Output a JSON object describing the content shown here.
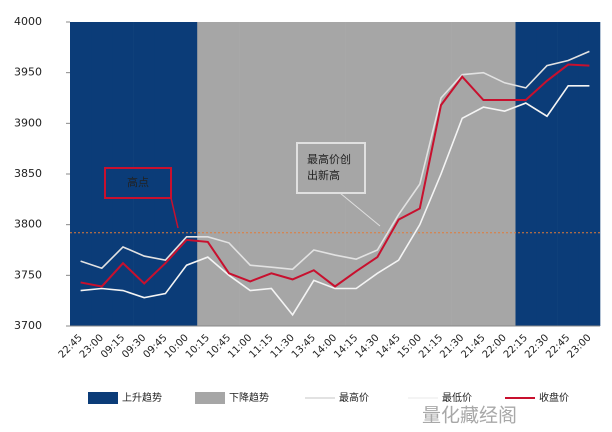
{
  "chart_data": {
    "type": "combo",
    "categories": [
      "22:45",
      "23:00",
      "09:15",
      "09:30",
      "09:45",
      "10:00",
      "10:15",
      "10:45",
      "11:00",
      "11:15",
      "11:30",
      "13:45",
      "14:00",
      "14:15",
      "14:30",
      "14:45",
      "15:00",
      "21:15",
      "21:30",
      "21:45",
      "22:00",
      "22:15",
      "22:30",
      "22:45",
      "23:00"
    ],
    "ylim": [
      3700,
      4000
    ],
    "yticks": [
      3700,
      3750,
      3800,
      3850,
      3900,
      3950,
      4000
    ],
    "series": [
      {
        "name": "上升趋势",
        "type": "bar",
        "color": "#0b3c78",
        "values": [
          4000,
          4000,
          4000,
          4000,
          4000,
          4000,
          null,
          null,
          null,
          null,
          null,
          null,
          null,
          null,
          null,
          null,
          null,
          null,
          null,
          null,
          null,
          4000,
          4000,
          4000,
          4000
        ]
      },
      {
        "name": "下降趋势",
        "type": "bar",
        "color": "#a6a6a6",
        "values": [
          null,
          null,
          null,
          null,
          null,
          null,
          4000,
          4000,
          4000,
          4000,
          4000,
          4000,
          4000,
          4000,
          4000,
          4000,
          4000,
          4000,
          4000,
          4000,
          4000,
          null,
          null,
          null,
          null
        ]
      },
      {
        "name": "最高价",
        "type": "line",
        "color": "#e2e2e2",
        "values": [
          3764,
          3757,
          3778,
          3769,
          3765,
          3788,
          3788,
          3782,
          3760,
          3758,
          3756,
          3775,
          3770,
          3766,
          3775,
          3810,
          3840,
          3925,
          3948,
          3950,
          3940,
          3935,
          3957,
          3962,
          3971
        ]
      },
      {
        "name": "最低价",
        "type": "line",
        "color": "#f4f4f4",
        "values": [
          3735,
          3737,
          3735,
          3728,
          3732,
          3760,
          3768,
          3750,
          3735,
          3737,
          3711,
          3745,
          3737,
          3737,
          3752,
          3765,
          3800,
          3850,
          3905,
          3916,
          3912,
          3920,
          3907,
          3937,
          3937
        ]
      },
      {
        "name": "收盘价",
        "type": "line",
        "color": "#c8102e",
        "values": [
          3743,
          3739,
          3762,
          3742,
          3762,
          3785,
          3783,
          3752,
          3744,
          3752,
          3746,
          3755,
          3739,
          3754,
          3768,
          3805,
          3816,
          3918,
          3946,
          3923,
          3923,
          3923,
          3942,
          3958,
          3957
        ]
      }
    ],
    "reference_line": {
      "value": 3792,
      "color": "#e07b39"
    },
    "annotations": [
      {
        "lines": [
          "高点"
        ],
        "border": "#c8102e"
      },
      {
        "lines": [
          "最高价创",
          "出新高"
        ],
        "border": "#e0e0e0"
      }
    ],
    "watermark": "量化藏经阁"
  }
}
